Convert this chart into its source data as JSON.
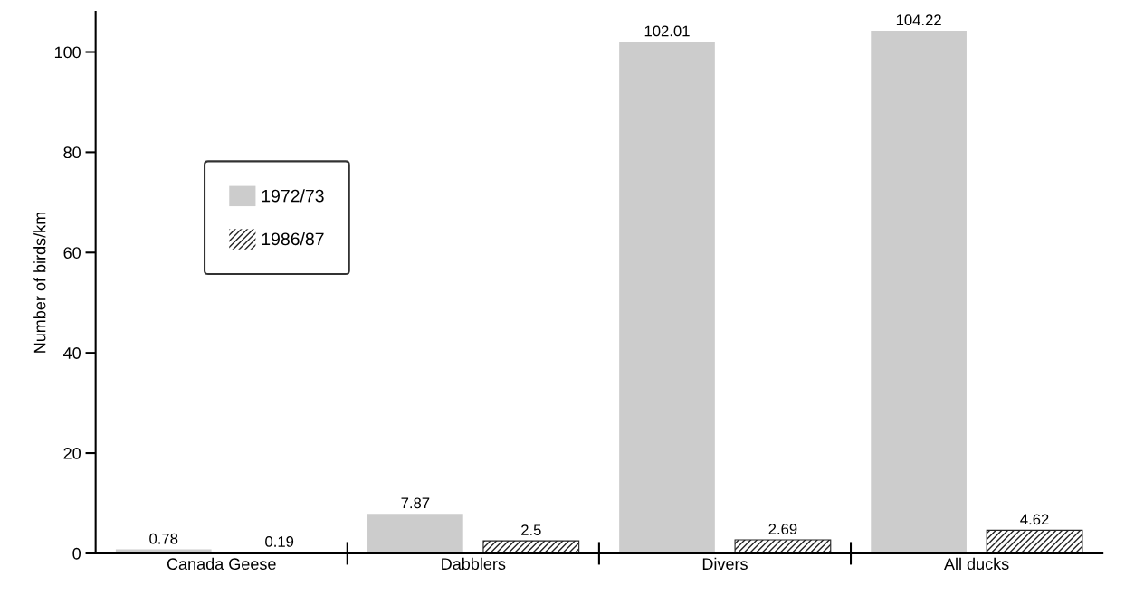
{
  "chart_data": {
    "type": "bar",
    "ylabel": "Number of birds/km",
    "categories": [
      "Canada Geese",
      "Dabblers",
      "Divers",
      "All ducks"
    ],
    "series": [
      {
        "name": "1972/73",
        "color": "#cccccc",
        "values": [
          0.78,
          7.87,
          102.01,
          104.22
        ]
      },
      {
        "name": "1986/87",
        "color": "#222222",
        "values": [
          0.19,
          2.5,
          2.69,
          4.62
        ]
      }
    ],
    "ylim": [
      0,
      108
    ],
    "yticks": [
      0,
      20,
      40,
      60,
      80,
      100
    ],
    "grid": false,
    "legend": "center left",
    "data_labels": true
  }
}
